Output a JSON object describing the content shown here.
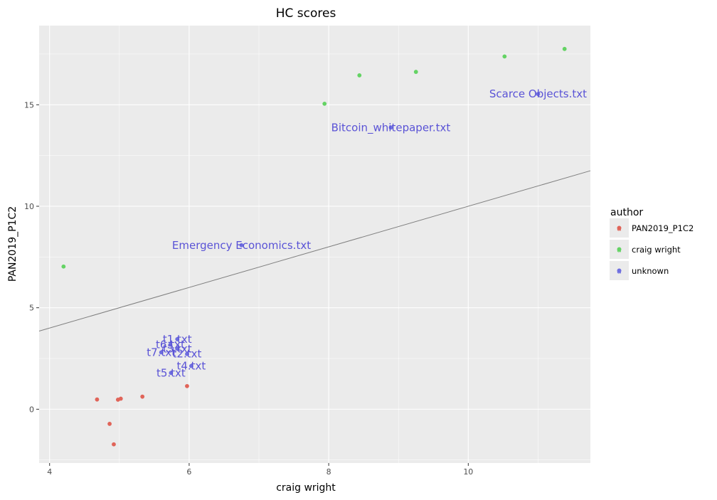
{
  "chart_data": {
    "type": "scatter",
    "title": "HC scores",
    "xlabel": "craig wright",
    "ylabel": "PAN2019_P1C2",
    "xlim": [
      3.85,
      11.75
    ],
    "ylim": [
      -2.65,
      18.9
    ],
    "xticks": [
      4,
      6,
      8,
      10
    ],
    "yticks": [
      0,
      5,
      10,
      15
    ],
    "grid": true,
    "legend": {
      "title": "author",
      "placement": "right",
      "entries": [
        "PAN2019_P1C2",
        "craig wright",
        "unknown"
      ]
    },
    "series": [
      {
        "name": "PAN2019_P1C2",
        "color": "#E06459",
        "points": [
          {
            "x": 4.68,
            "y": 0.48
          },
          {
            "x": 4.86,
            "y": -0.72
          },
          {
            "x": 4.92,
            "y": -1.73
          },
          {
            "x": 4.98,
            "y": 0.47
          },
          {
            "x": 5.02,
            "y": 0.52
          },
          {
            "x": 5.33,
            "y": 0.62
          },
          {
            "x": 5.97,
            "y": 1.14
          }
        ]
      },
      {
        "name": "craig wright",
        "color": "#64D364",
        "points": [
          {
            "x": 4.2,
            "y": 7.03
          },
          {
            "x": 7.94,
            "y": 15.05
          },
          {
            "x": 8.44,
            "y": 16.45
          },
          {
            "x": 9.25,
            "y": 16.62
          },
          {
            "x": 10.52,
            "y": 17.38
          },
          {
            "x": 11.38,
            "y": 17.75
          }
        ]
      },
      {
        "name": "unknown",
        "color": "#6F6FE0",
        "points": [
          {
            "x": 8.89,
            "y": 13.88,
            "label": "Bitcoin_whitepaper.txt"
          },
          {
            "x": 11.0,
            "y": 15.53,
            "label": "Scarce Objects.txt"
          },
          {
            "x": 6.75,
            "y": 8.08,
            "label": "Emergency Economics.txt"
          },
          {
            "x": 5.83,
            "y": 3.45,
            "label": "t1.txt"
          },
          {
            "x": 5.97,
            "y": 2.72,
            "label": "t2.txt"
          },
          {
            "x": 5.83,
            "y": 2.98,
            "label": "t3.txt"
          },
          {
            "x": 6.03,
            "y": 2.13,
            "label": "t4.txt"
          },
          {
            "x": 5.74,
            "y": 1.79,
            "label": "t5.txt"
          },
          {
            "x": 5.73,
            "y": 3.18,
            "label": "t6.txt"
          },
          {
            "x": 5.6,
            "y": 2.8,
            "label": "t7.txt"
          }
        ]
      }
    ],
    "reference_line": {
      "type": "y=x",
      "color": "#7F7F7F"
    },
    "annotation_color": "#5A53D6"
  }
}
